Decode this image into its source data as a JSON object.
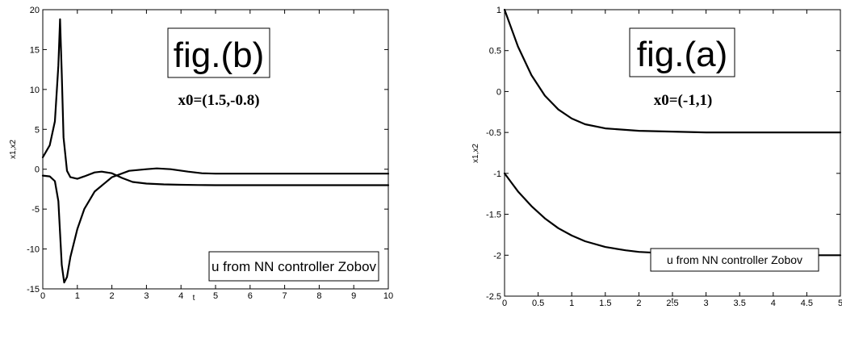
{
  "chart_data": [
    {
      "type": "line",
      "title": "",
      "xlabel": "t",
      "ylabel": "x1,x2",
      "xlim": [
        0,
        10
      ],
      "ylim": [
        -15,
        20
      ],
      "xticks": [
        "0",
        "1",
        "2",
        "3",
        "4",
        "5",
        "6",
        "7",
        "8",
        "9",
        "10"
      ],
      "yticks": [
        "-15",
        "-10",
        "-5",
        "0",
        "5",
        "10",
        "15",
        "20"
      ],
      "xtick_values": [
        0,
        1,
        2,
        3,
        4,
        5,
        6,
        7,
        8,
        9,
        10
      ],
      "ytick_values": [
        -15,
        -10,
        -5,
        0,
        5,
        10,
        15,
        20
      ],
      "grid": false,
      "annotations": {
        "fig_label": "fig.(b)",
        "initial_condition": "x0=(1.5,-0.8)",
        "legend_text": "u from NN controller Zobov"
      },
      "series": [
        {
          "x": [
            0,
            0.2,
            0.35,
            0.45,
            0.5,
            0.55,
            0.6,
            0.7,
            0.8,
            1.0,
            1.2,
            1.5,
            1.7,
            2.0,
            2.3,
            2.6,
            3.0,
            3.5,
            4.0,
            4.5,
            5.0,
            6,
            7,
            8,
            9,
            10
          ],
          "y": [
            1.5,
            3.0,
            6.0,
            13.0,
            18.8,
            12.0,
            4.0,
            -0.2,
            -1.0,
            -1.2,
            -0.9,
            -0.4,
            -0.3,
            -0.5,
            -1.1,
            -1.6,
            -1.8,
            -1.9,
            -1.95,
            -1.98,
            -2.0,
            -2.0,
            -2.0,
            -2.0,
            -2.0,
            -2.0
          ]
        },
        {
          "x": [
            0,
            0.2,
            0.35,
            0.45,
            0.5,
            0.55,
            0.62,
            0.7,
            0.8,
            1.0,
            1.2,
            1.5,
            2.0,
            2.5,
            3.0,
            3.3,
            3.7,
            4.2,
            4.6,
            5.0,
            6,
            7,
            8,
            9,
            10
          ],
          "y": [
            -0.8,
            -0.9,
            -1.5,
            -4.0,
            -8.0,
            -12.0,
            -14.2,
            -13.5,
            -11.0,
            -7.5,
            -5.0,
            -2.8,
            -1.0,
            -0.2,
            0.0,
            0.1,
            0.0,
            -0.3,
            -0.5,
            -0.55,
            -0.55,
            -0.55,
            -0.55,
            -0.55,
            -0.55
          ]
        }
      ]
    },
    {
      "type": "line",
      "title": "",
      "xlabel": "t",
      "ylabel": "x1,x2",
      "xlim": [
        0,
        5
      ],
      "ylim": [
        -2.5,
        1
      ],
      "xticks": [
        "0",
        "0.5",
        "1",
        "1.5",
        "2",
        "2.5",
        "3",
        "3.5",
        "4",
        "4.5",
        "5"
      ],
      "yticks": [
        "-2.5",
        "-2",
        "-1.5",
        "-1",
        "-0.5",
        "0",
        "0.5",
        "1"
      ],
      "xtick_values": [
        0,
        0.5,
        1,
        1.5,
        2,
        2.5,
        3,
        3.5,
        4,
        4.5,
        5
      ],
      "ytick_values": [
        -2.5,
        -2,
        -1.5,
        -1,
        -0.5,
        0,
        0.5,
        1
      ],
      "grid": false,
      "annotations": {
        "fig_label": "fig.(a)",
        "initial_condition": "x0=(-1,1)",
        "legend_text": "u from NN controller Zobov"
      },
      "series": [
        {
          "x": [
            0,
            0.2,
            0.4,
            0.6,
            0.8,
            1.0,
            1.2,
            1.5,
            2.0,
            2.5,
            3.0,
            3.5,
            4.0,
            4.5,
            5.0
          ],
          "y": [
            1.0,
            0.55,
            0.2,
            -0.05,
            -0.22,
            -0.33,
            -0.4,
            -0.45,
            -0.48,
            -0.49,
            -0.5,
            -0.5,
            -0.5,
            -0.5,
            -0.5
          ]
        },
        {
          "x": [
            0,
            0.2,
            0.4,
            0.6,
            0.8,
            1.0,
            1.2,
            1.5,
            1.8,
            2.0,
            2.5,
            3.0,
            3.5,
            4.0,
            4.5,
            5.0
          ],
          "y": [
            -1.0,
            -1.22,
            -1.4,
            -1.55,
            -1.67,
            -1.76,
            -1.83,
            -1.9,
            -1.94,
            -1.96,
            -1.98,
            -1.99,
            -2.0,
            -2.0,
            -2.0,
            -2.0
          ]
        }
      ]
    }
  ]
}
